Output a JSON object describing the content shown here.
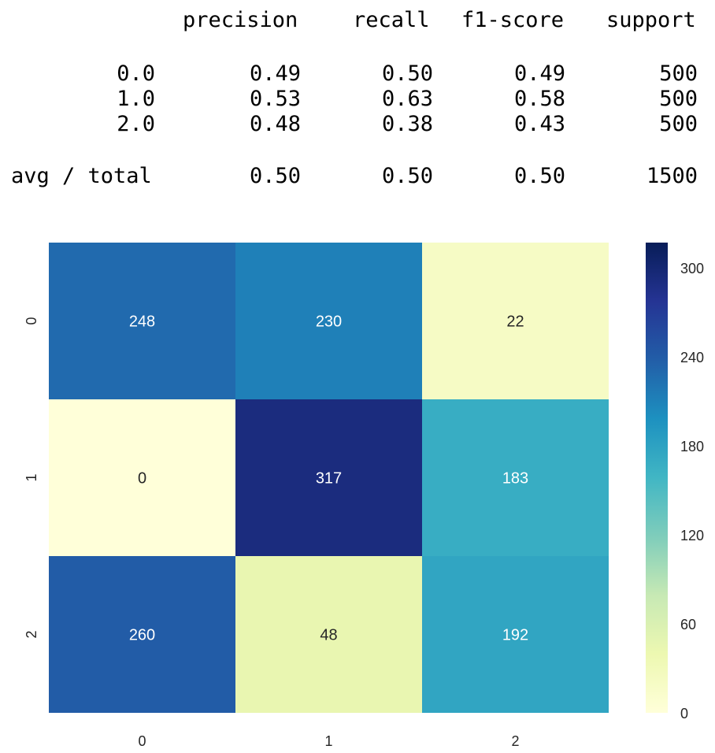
{
  "report": {
    "headers": [
      "precision",
      "recall",
      "f1-score",
      "support"
    ],
    "rows": [
      {
        "label": "0.0",
        "values": [
          "0.49",
          "0.50",
          "0.49",
          "500"
        ]
      },
      {
        "label": "1.0",
        "values": [
          "0.53",
          "0.63",
          "0.58",
          "500"
        ]
      },
      {
        "label": "2.0",
        "values": [
          "0.48",
          "0.38",
          "0.43",
          "500"
        ]
      }
    ],
    "total": {
      "label": "avg / total",
      "values": [
        "0.50",
        "0.50",
        "0.50",
        "1500"
      ]
    }
  },
  "chart_data": {
    "type": "heatmap",
    "x_categories": [
      "0",
      "1",
      "2"
    ],
    "y_categories": [
      "0",
      "1",
      "2"
    ],
    "values": [
      [
        248,
        230,
        22
      ],
      [
        0,
        317,
        183
      ],
      [
        260,
        48,
        192
      ]
    ],
    "colormap": "YlGnBu",
    "vmin": 0,
    "vmax": 317,
    "colorbar_ticks": [
      0,
      60,
      120,
      180,
      240,
      300
    ],
    "title": "",
    "xlabel": "",
    "ylabel": ""
  }
}
